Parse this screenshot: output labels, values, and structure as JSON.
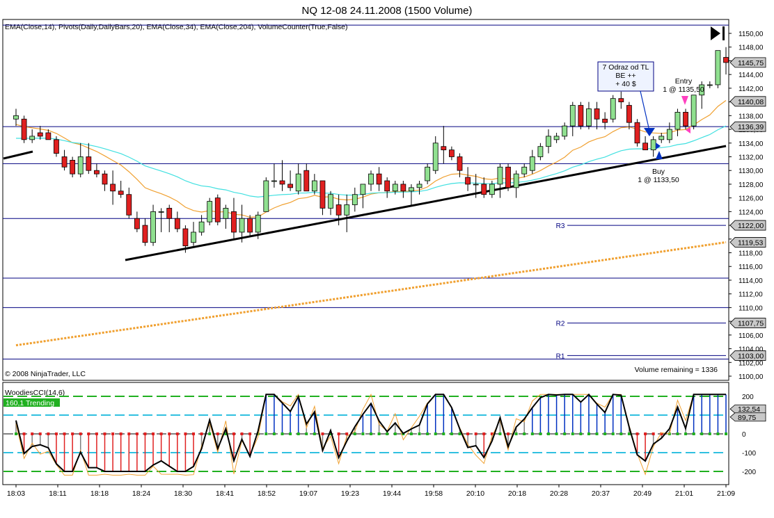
{
  "window": {
    "title": "NQ 12-08  24.11.2008 (1500 Volume)",
    "indicators_line": "EMA(Close,14), Pivots(Daily,DailyBars,20), EMA(Close,34), EMA(Close,204), VolumeCounter(True,False)",
    "copyright": "© 2008 NinjaTrader, LLC",
    "volume_remaining": "Volume remaining = 1336",
    "cci_label": "WoodiesCCI(14,6)",
    "cci_badge": "160,1 Trending"
  },
  "colors": {
    "up_candle": "#90e090",
    "down_candle": "#e02020",
    "candle_border": "#000000",
    "ema14": "#f0a030",
    "ema34": "#40e0e0",
    "ema204": "#f0a030",
    "pivot_line": "#000080",
    "trendline": "#000000",
    "price_label_bg": "#c8c8c8",
    "trending_badge": "#20b020"
  },
  "price_labels": [
    "1150,00",
    "1148,00",
    "1146,00",
    "1144,00",
    "1142,00",
    "1140,00",
    "1138,00",
    "1136,00",
    "1134,00",
    "1132,00",
    "1130,00",
    "1128,00",
    "1126,00",
    "1124,00",
    "1122,00",
    "1120,00",
    "1118,00",
    "1116,00",
    "1114,00",
    "1112,00",
    "1110,00",
    "1108,00",
    "1106,00",
    "1104,00",
    "1102,00",
    "1100,00"
  ],
  "markers": {
    "last": "1145,75",
    "m1140": "1140,08",
    "m1136": "1136,39",
    "r3": "1122,00",
    "ema204": "1119,53",
    "r2": "1107,75",
    "r1": "1103,00",
    "cci": "132,54",
    "turbo": "89,75"
  },
  "pivot_labels": {
    "r3": "R3",
    "r2": "R2",
    "r1": "R1"
  },
  "annotation": {
    "line1": "7 Odraz od TL",
    "line2": "BE ++",
    "line3": "+ 40 $"
  },
  "entry": {
    "line1": "Entry",
    "line2": "1 @ 1135,50"
  },
  "buy": {
    "line1": "Buy",
    "line2": "1 @ 1133,50"
  },
  "cci_levels": [
    "200",
    "100",
    "0",
    "-100",
    "-200"
  ],
  "time_labels": [
    "18:03",
    "18:11",
    "18:18",
    "18:24",
    "18:30",
    "18:41",
    "18:52",
    "19:07",
    "19:23",
    "19:44",
    "19:58",
    "20:10",
    "20:18",
    "20:28",
    "20:37",
    "20:49",
    "21:01",
    "21:09"
  ],
  "chart_data": {
    "type": "candlestick",
    "y_range": [
      1099,
      1151.5
    ],
    "candles": [
      [
        1137.5,
        1139,
        1136.5,
        1138
      ],
      [
        1137.5,
        1138,
        1134,
        1134.5
      ],
      [
        1134.5,
        1136,
        1134,
        1135
      ],
      [
        1135.5,
        1136.5,
        1134.5,
        1135
      ],
      [
        1135.5,
        1136,
        1134.5,
        1134.5
      ],
      [
        1134.5,
        1135,
        1132,
        1132.5
      ],
      [
        1132,
        1133,
        1130,
        1130.5
      ],
      [
        1131.5,
        1132,
        1129,
        1129.5
      ],
      [
        1129.5,
        1134,
        1129,
        1132
      ],
      [
        1132,
        1134,
        1129.5,
        1130
      ],
      [
        1130,
        1131,
        1129,
        1129.5
      ],
      [
        1129.5,
        1130,
        1127,
        1128
      ],
      [
        1128,
        1130,
        1125,
        1127
      ],
      [
        1127,
        1128.5,
        1126,
        1126.5
      ],
      [
        1126.5,
        1127.5,
        1123,
        1123.5
      ],
      [
        1123,
        1124,
        1121,
        1121.5
      ],
      [
        1122,
        1123,
        1119,
        1119.5
      ],
      [
        1119.5,
        1125,
        1119,
        1124
      ],
      [
        1124,
        1124.5,
        1121,
        1124
      ],
      [
        1124.5,
        1125,
        1121,
        1123
      ],
      [
        1123,
        1124,
        1121,
        1121.5
      ],
      [
        1121.5,
        1122,
        1118,
        1119
      ],
      [
        1119.5,
        1122.5,
        1119,
        1121
      ],
      [
        1121,
        1123.5,
        1120.5,
        1122.5
      ],
      [
        1122.5,
        1126,
        1122,
        1125.5
      ],
      [
        1126,
        1126.5,
        1122,
        1122.5
      ],
      [
        1123,
        1125,
        1121.5,
        1124.5
      ],
      [
        1124,
        1126,
        1120,
        1121
      ],
      [
        1121,
        1125,
        1119.5,
        1123
      ],
      [
        1123,
        1123.5,
        1120.5,
        1121
      ],
      [
        1121,
        1124,
        1120,
        1123.5
      ],
      [
        1124,
        1129,
        1124,
        1128.5
      ],
      [
        1128.5,
        1131,
        1127.5,
        1128.5
      ],
      [
        1128.5,
        1131.5,
        1127,
        1128
      ],
      [
        1128,
        1130,
        1127,
        1127.5
      ],
      [
        1127,
        1131,
        1126.5,
        1129.5
      ],
      [
        1130,
        1131,
        1127,
        1127
      ],
      [
        1127,
        1129.5,
        1126.5,
        1128.5
      ],
      [
        1128.5,
        1128.5,
        1123.5,
        1124.5
      ],
      [
        1124.5,
        1127,
        1123.5,
        1126.5
      ],
      [
        1125,
        1126.5,
        1122,
        1123.5
      ],
      [
        1123.5,
        1126.5,
        1121,
        1125
      ],
      [
        1125,
        1127.5,
        1124,
        1126.5
      ],
      [
        1126.5,
        1128,
        1124.5,
        1128
      ],
      [
        1128,
        1130,
        1127,
        1129.5
      ],
      [
        1129.5,
        1130.5,
        1127,
        1128
      ],
      [
        1128.5,
        1129,
        1126,
        1127
      ],
      [
        1127,
        1128.5,
        1126.5,
        1128
      ],
      [
        1128,
        1128.5,
        1126,
        1127
      ],
      [
        1127,
        1128,
        1125,
        1127.5
      ],
      [
        1127.5,
        1128.5,
        1126.5,
        1128
      ],
      [
        1128.5,
        1131,
        1128,
        1130.5
      ],
      [
        1130,
        1135,
        1129.5,
        1134
      ],
      [
        1133.5,
        1136.5,
        1131,
        1133
      ],
      [
        1133,
        1133.5,
        1131.5,
        1132
      ],
      [
        1132,
        1132.5,
        1129,
        1130
      ],
      [
        1129,
        1130.5,
        1127,
        1128
      ],
      [
        1128,
        1129.5,
        1126,
        1128
      ],
      [
        1128,
        1129,
        1126,
        1126.5
      ],
      [
        1126.5,
        1128.5,
        1126,
        1128
      ],
      [
        1128,
        1131,
        1126,
        1130.5
      ],
      [
        1130.5,
        1131,
        1127,
        1127.5
      ],
      [
        1127.5,
        1130,
        1126,
        1129.5
      ],
      [
        1129.5,
        1131,
        1129,
        1130.5
      ],
      [
        1130,
        1133,
        1129.5,
        1132
      ],
      [
        1132,
        1134,
        1131.5,
        1133.5
      ],
      [
        1133.5,
        1136,
        1132.5,
        1135
      ],
      [
        1134.5,
        1135.5,
        1134,
        1135
      ],
      [
        1135,
        1137,
        1134.5,
        1136.5
      ],
      [
        1136.5,
        1140,
        1135,
        1139.5
      ],
      [
        1139.5,
        1140,
        1136,
        1136.5
      ],
      [
        1136.5,
        1140,
        1136,
        1139
      ],
      [
        1139,
        1140,
        1136,
        1137.5
      ],
      [
        1137.5,
        1138.5,
        1136,
        1137
      ],
      [
        1137.5,
        1141,
        1137,
        1140.5
      ],
      [
        1140.5,
        1141.5,
        1139,
        1140
      ],
      [
        1139.5,
        1140,
        1136,
        1137
      ],
      [
        1137,
        1137.5,
        1133.5,
        1134
      ],
      [
        1134,
        1135,
        1133,
        1133
      ],
      [
        1133,
        1135,
        1132,
        1134.5
      ],
      [
        1134.5,
        1135.5,
        1134,
        1135
      ],
      [
        1134.5,
        1137,
        1134,
        1136
      ],
      [
        1136,
        1139,
        1135,
        1138.5
      ],
      [
        1138.5,
        1139,
        1136,
        1136.5
      ],
      [
        1136.5,
        1141,
        1136,
        1141
      ],
      [
        1141,
        1143,
        1139,
        1142.5
      ],
      [
        1142.5,
        1143,
        1142,
        1142.5
      ],
      [
        1142.5,
        1147.5,
        1142,
        1147.5
      ],
      [
        1146.5,
        1148,
        1144,
        1145.75
      ]
    ]
  }
}
